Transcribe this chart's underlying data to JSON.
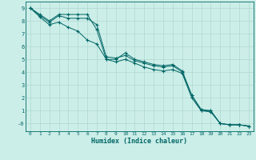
{
  "xlabel": "Humidex (Indice chaleur)",
  "bg_color": "#cceee8",
  "grid_color_major": "#b0d8d2",
  "grid_color_minor": "#d4eeea",
  "line_color": "#006666",
  "xlim": [
    -0.5,
    23.5
  ],
  "ylim": [
    -0.6,
    9.5
  ],
  "xticks": [
    0,
    1,
    2,
    3,
    4,
    5,
    6,
    7,
    8,
    9,
    10,
    11,
    12,
    13,
    14,
    15,
    16,
    17,
    18,
    19,
    20,
    21,
    22,
    23
  ],
  "yticks": [
    0,
    1,
    2,
    3,
    4,
    5,
    6,
    7,
    8,
    9
  ],
  "ytick_labels": [
    "-0",
    "1",
    "2",
    "3",
    "4",
    "5",
    "6",
    "7",
    "8",
    "9"
  ],
  "line1_x": [
    0,
    1,
    2,
    3,
    4,
    5,
    6,
    7,
    8,
    9,
    10,
    11,
    12,
    13,
    14,
    15,
    16,
    17,
    18,
    19,
    20,
    21,
    22,
    23
  ],
  "line1_y": [
    9.0,
    8.5,
    8.0,
    8.5,
    8.5,
    8.5,
    8.5,
    7.3,
    5.0,
    5.0,
    5.5,
    5.0,
    4.8,
    4.6,
    4.5,
    4.6,
    4.1,
    2.2,
    1.0,
    1.0,
    0.0,
    -0.1,
    -0.1,
    -0.2
  ],
  "line2_x": [
    0,
    1,
    2,
    3,
    4,
    5,
    6,
    7,
    8,
    9,
    10,
    11,
    12,
    13,
    14,
    15,
    16,
    17,
    18,
    19,
    20,
    21,
    22,
    23
  ],
  "line2_y": [
    9.0,
    8.4,
    7.9,
    8.4,
    8.2,
    8.2,
    8.2,
    7.7,
    5.2,
    5.1,
    5.3,
    4.9,
    4.7,
    4.5,
    4.4,
    4.5,
    4.0,
    2.2,
    1.1,
    1.0,
    0.0,
    -0.1,
    -0.1,
    -0.2
  ],
  "line3_x": [
    0,
    1,
    2,
    3,
    4,
    5,
    6,
    7,
    8,
    9,
    10,
    11,
    12,
    13,
    14,
    15,
    16,
    17,
    18,
    19,
    20,
    21,
    22,
    23
  ],
  "line3_y": [
    9.0,
    8.3,
    7.7,
    7.9,
    7.5,
    7.2,
    6.5,
    6.2,
    5.0,
    4.8,
    5.0,
    4.7,
    4.4,
    4.2,
    4.1,
    4.2,
    3.9,
    2.0,
    1.0,
    0.9,
    0.0,
    -0.1,
    -0.1,
    -0.2
  ]
}
